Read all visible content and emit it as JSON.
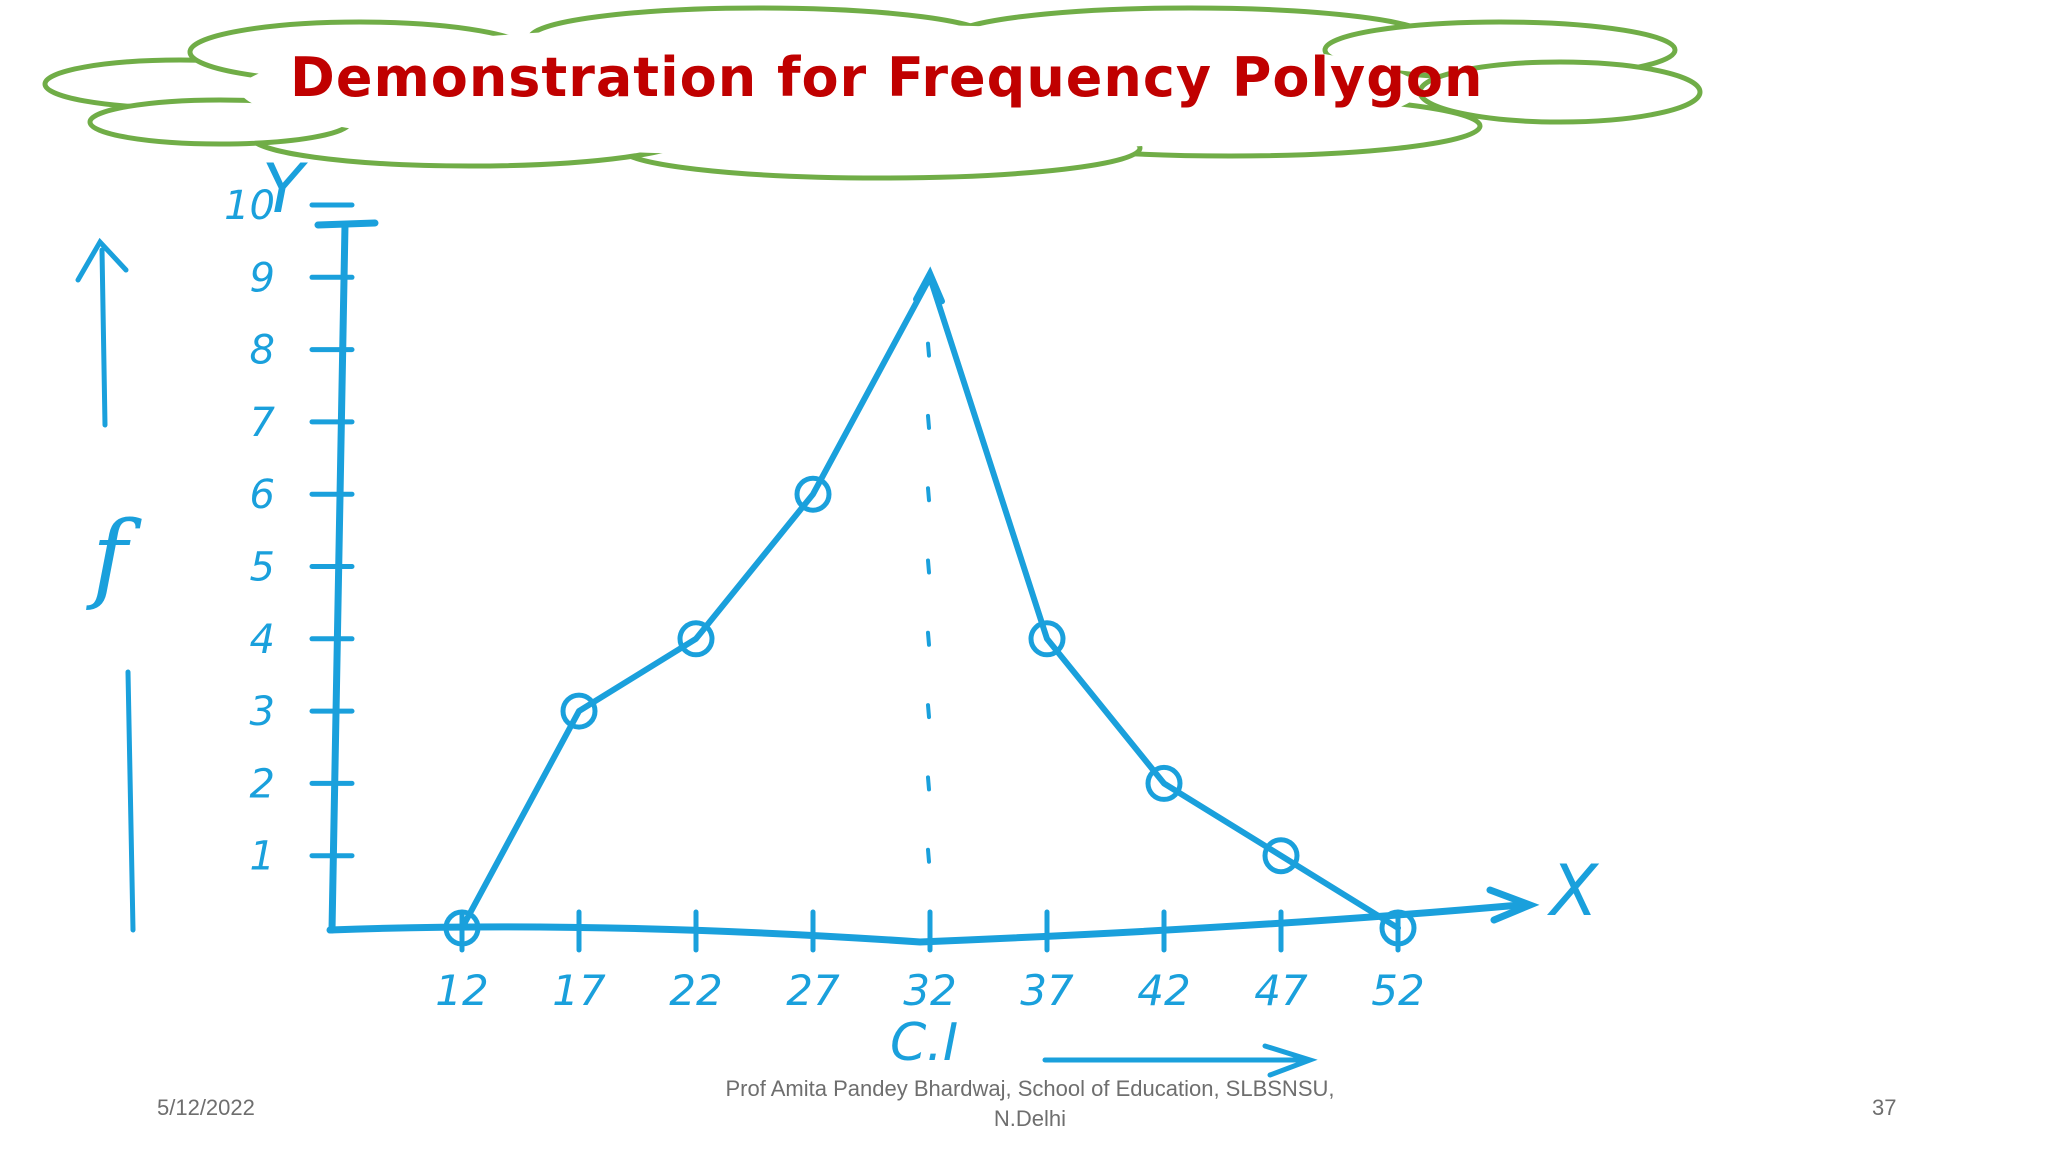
{
  "slide": {
    "title": "Demonstration for Frequency Polygon",
    "footer_date": "5/12/2022",
    "footer_author": "Prof Amita Pandey Bhardwaj, School of Education, SLBSNSU, N.Delhi",
    "page_number": "37"
  },
  "colors": {
    "ink": "#1aa0dc",
    "title": "#c00000",
    "cloud": "#70ad47",
    "footer": "#6e6e6e"
  },
  "chart_data": {
    "type": "line",
    "title": "Demonstration for Frequency Polygon",
    "x_axis_letter": "X",
    "y_axis_letter": "Y",
    "xlabel": "C.I",
    "ylabel": "f",
    "x": [
      12,
      17,
      22,
      27,
      32,
      37,
      42,
      47,
      52
    ],
    "y": [
      0,
      3,
      4,
      6,
      9,
      4,
      2,
      1,
      0
    ],
    "x_tick_labels": [
      "12",
      "17",
      "22",
      "27",
      "32",
      "37",
      "42",
      "47",
      "52"
    ],
    "y_tick_labels": [
      "1",
      "2",
      "3",
      "4",
      "5",
      "6",
      "7",
      "8",
      "9",
      "10"
    ],
    "xlim": [
      7,
      57
    ],
    "ylim": [
      0,
      10
    ],
    "grid": false,
    "legend": "none"
  }
}
